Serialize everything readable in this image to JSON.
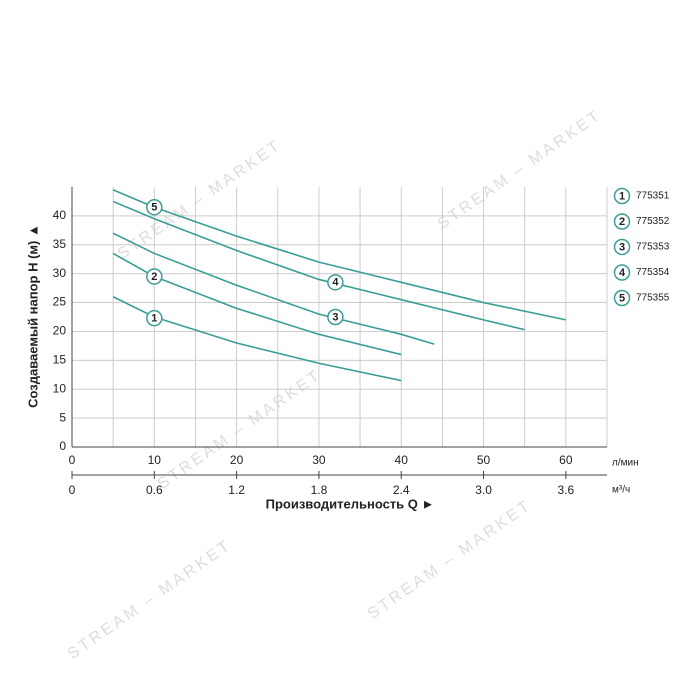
{
  "chart_data": {
    "type": "line",
    "y_label": "Создаваемый напор H (м) ▲",
    "x_label": "Производительность Q ►",
    "x_unit": "л/мин",
    "x2_unit": "м³/ч",
    "watermark": "STREAM – MARKET",
    "xlim": [
      0,
      65
    ],
    "xticks": [
      0,
      10,
      20,
      30,
      40,
      50,
      60
    ],
    "xminor": [
      5,
      15,
      25,
      35,
      45,
      55,
      65
    ],
    "x2lim": [
      0,
      3.9
    ],
    "x2ticks": [
      0,
      0.6,
      1.2,
      1.8,
      2.4,
      {
        "value": 3,
        "label": "3.0"
      },
      3.6
    ],
    "ylim": [
      0,
      45
    ],
    "yticks": [
      0,
      5,
      10,
      15,
      20,
      25,
      30,
      35,
      40
    ],
    "grid": true,
    "color": "#3a9e96",
    "series": [
      {
        "name": "775351",
        "label": "1",
        "x": [
          5,
          10,
          20,
          30,
          40
        ],
        "values": [
          26,
          22.5,
          18,
          14.5,
          11.5
        ]
      },
      {
        "name": "775352",
        "label": "2",
        "x": [
          5,
          10,
          20,
          30,
          40
        ],
        "values": [
          33.5,
          29.5,
          24,
          19.5,
          16
        ]
      },
      {
        "name": "775353",
        "label": "3",
        "x": [
          5,
          10,
          20,
          30,
          40,
          44
        ],
        "values": [
          37,
          33.5,
          28,
          23,
          19.5,
          17.8
        ]
      },
      {
        "name": "775354",
        "label": "4",
        "x": [
          5,
          10,
          20,
          30,
          40,
          50,
          55
        ],
        "values": [
          42.5,
          39.5,
          34,
          29,
          25.5,
          22,
          20.3
        ]
      },
      {
        "name": "775355",
        "label": "5",
        "x": [
          5,
          10,
          20,
          30,
          40,
          50,
          60
        ],
        "values": [
          44.5,
          41.5,
          36.5,
          32,
          28.5,
          25,
          22
        ]
      }
    ]
  }
}
